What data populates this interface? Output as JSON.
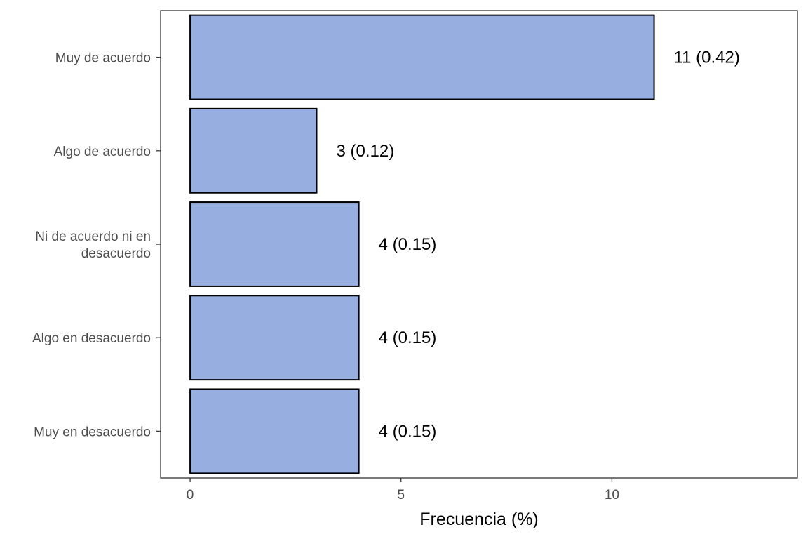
{
  "chart_data": {
    "type": "bar",
    "orientation": "horizontal",
    "categories": [
      "Muy de acuerdo",
      "Algo de acuerdo",
      "Ni de acuerdo ni en desacuerdo",
      "Algo en desacuerdo",
      "Muy en desacuerdo"
    ],
    "category_lines": [
      [
        "Muy de acuerdo"
      ],
      [
        "Algo de acuerdo"
      ],
      [
        "Ni de acuerdo ni en",
        "desacuerdo"
      ],
      [
        "Algo en desacuerdo"
      ],
      [
        "Muy en desacuerdo"
      ]
    ],
    "values": [
      11,
      3,
      4,
      4,
      4
    ],
    "proportions": [
      0.42,
      0.12,
      0.15,
      0.15,
      0.15
    ],
    "data_labels": [
      "11 (0.42)",
      "3 (0.12)",
      "4 (0.15)",
      "4 (0.15)",
      "4 (0.15)"
    ],
    "xlabel": "Frecuencia (%)",
    "ylabel": "",
    "title": "",
    "xlim": [
      -0.7,
      14.4
    ],
    "xticks": [
      0,
      5,
      10
    ],
    "xtick_labels": [
      "0",
      "5",
      "10"
    ],
    "grid": false,
    "legend": "none",
    "colors": {
      "bar_fill": "#97AEE0",
      "bar_stroke": "#000000",
      "panel_border": "#333333",
      "tick_text": "#4d4d4d"
    }
  }
}
